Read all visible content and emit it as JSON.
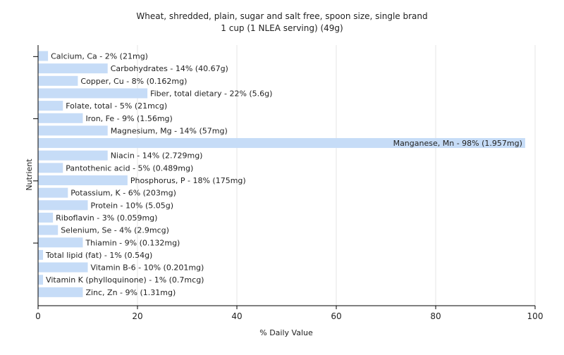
{
  "chart_data": {
    "type": "bar",
    "orientation": "horizontal",
    "title": "Wheat, shredded, plain, sugar and salt free, spoon size, single brand",
    "subtitle": "1 cup (1 NLEA serving) (49g)",
    "xlabel": "% Daily Value",
    "ylabel": "Nutrient",
    "xlim": [
      0,
      100
    ],
    "xticks": [
      "0",
      "20",
      "40",
      "60",
      "80",
      "100"
    ],
    "grid": true,
    "bar_color": "#c6dcf7",
    "categories": [
      "Calcium, Ca",
      "Carbohydrates",
      "Copper, Cu",
      "Fiber, total dietary",
      "Folate, total",
      "Iron, Fe",
      "Magnesium, Mg",
      "Manganese, Mn",
      "Niacin",
      "Pantothenic acid",
      "Phosphorus, P",
      "Potassium, K",
      "Protein",
      "Riboflavin",
      "Selenium, Se",
      "Thiamin",
      "Total lipid (fat)",
      "Vitamin B-6",
      "Vitamin K (phylloquinone)",
      "Zinc, Zn"
    ],
    "values": [
      2,
      14,
      8,
      22,
      5,
      9,
      14,
      98,
      14,
      5,
      18,
      6,
      10,
      3,
      4,
      9,
      1,
      10,
      1,
      9
    ],
    "data_labels": [
      "Calcium, Ca - 2% (21mg)",
      "Carbohydrates - 14% (40.67g)",
      "Copper, Cu - 8% (0.162mg)",
      "Fiber, total dietary - 22% (5.6g)",
      "Folate, total - 5% (21mcg)",
      "Iron, Fe - 9% (1.56mg)",
      "Magnesium, Mg - 14% (57mg)",
      "Manganese, Mn - 98% (1.957mg)",
      "Niacin - 14% (2.729mg)",
      "Pantothenic acid - 5% (0.489mg)",
      "Phosphorus, P - 18% (175mg)",
      "Potassium, K - 6% (203mg)",
      "Protein - 10% (5.05g)",
      "Riboflavin - 3% (0.059mg)",
      "Selenium, Se - 4% (2.9mcg)",
      "Thiamin - 9% (0.132mg)",
      "Total lipid (fat) - 1% (0.54g)",
      "Vitamin B-6 - 10% (0.201mg)",
      "Vitamin K (phylloquinone) - 1% (0.7mcg)",
      "Zinc, Zn - 9% (1.31mg)"
    ]
  }
}
